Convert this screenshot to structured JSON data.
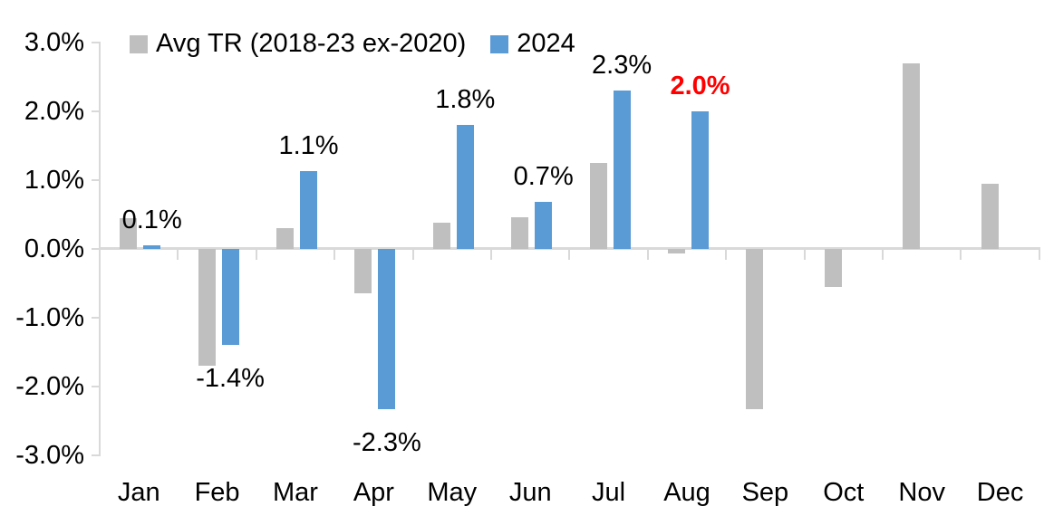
{
  "chart_data": {
    "type": "bar",
    "title": "",
    "xlabel": "",
    "ylabel": "",
    "categories": [
      "Jan",
      "Feb",
      "Mar",
      "Apr",
      "May",
      "Jun",
      "Jul",
      "Aug",
      "Sep",
      "Oct",
      "Nov",
      "Dec"
    ],
    "y_tick_labels": [
      "3.0%",
      "2.0%",
      "1.0%",
      "0.0%",
      "-1.0%",
      "-2.0%",
      "-3.0%"
    ],
    "y_tick_values": [
      3,
      2,
      1,
      0,
      -1,
      -2,
      -3
    ],
    "ylim": [
      -3.0,
      3.0
    ],
    "unit": "%",
    "grid": false,
    "legend_position": "top",
    "axis_color": "#D9D9D9",
    "background": "#FFFFFF",
    "series": [
      {
        "name": "Avg TR (2018-23 ex-2020)",
        "color": "#BFBFBF",
        "values": [
          0.45,
          -1.7,
          0.3,
          -0.65,
          0.38,
          0.46,
          1.25,
          -0.07,
          -2.33,
          -0.55,
          2.7,
          0.95
        ]
      },
      {
        "name": "2024",
        "color": "#5B9BD5",
        "values": [
          0.05,
          -1.4,
          1.13,
          -2.33,
          1.8,
          0.68,
          2.3,
          2.0,
          null,
          null,
          null,
          null
        ],
        "data_labels": [
          "0.1%",
          "-1.4%",
          "1.1%",
          "-2.3%",
          "1.8%",
          "0.7%",
          "2.3%",
          "2.0%",
          null,
          null,
          null,
          null
        ],
        "data_label_colors": [
          "#000000",
          "#000000",
          "#000000",
          "#000000",
          "#000000",
          "#000000",
          "#000000",
          "#FF0000",
          null,
          null,
          null,
          null
        ],
        "data_label_bold": [
          false,
          false,
          false,
          false,
          false,
          false,
          false,
          true,
          null,
          null,
          null,
          null
        ]
      }
    ]
  }
}
